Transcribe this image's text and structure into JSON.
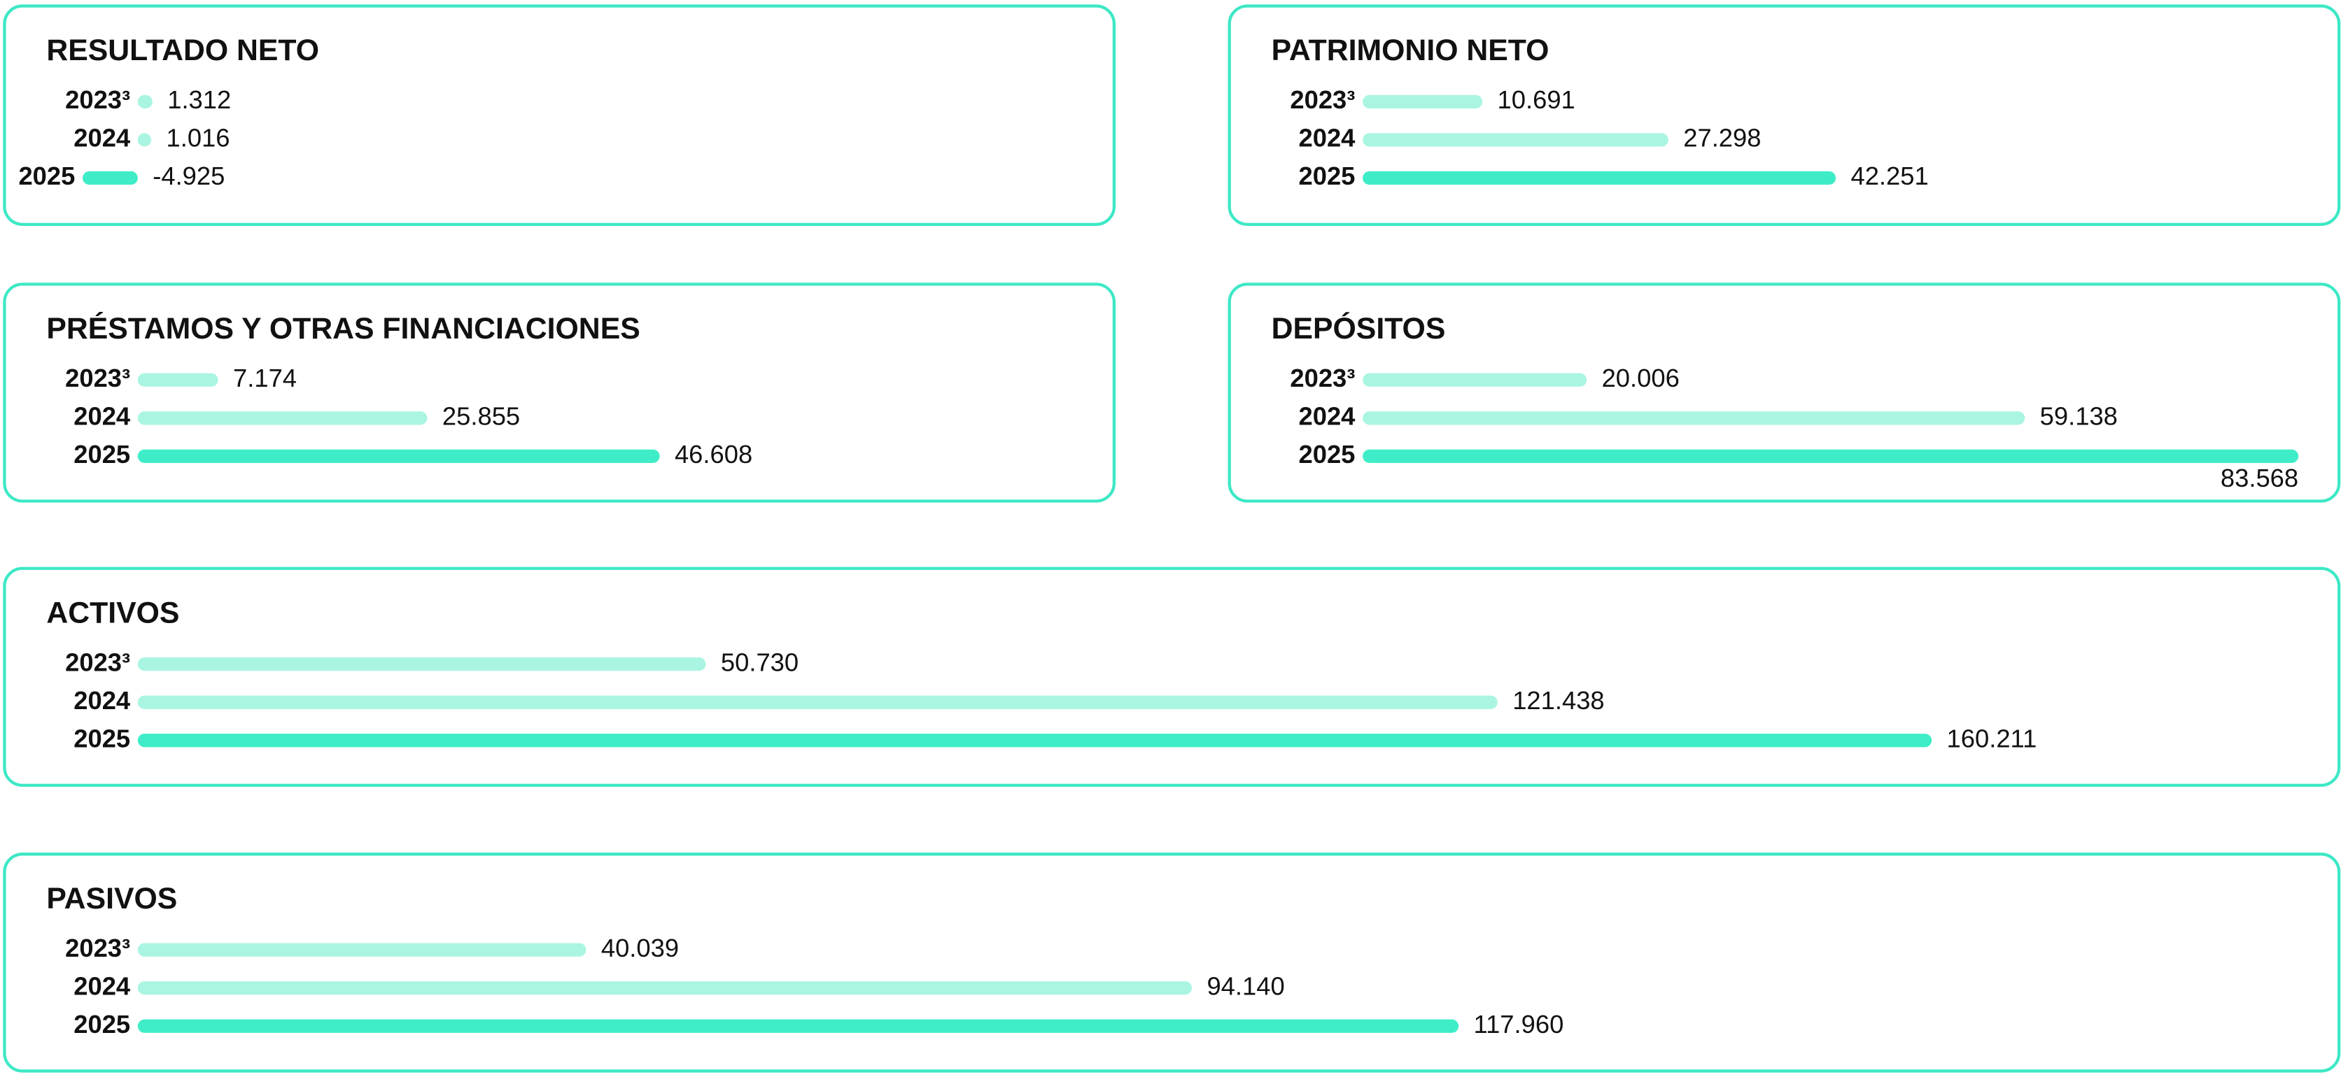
{
  "chart_data": [
    {
      "type": "hbar",
      "title": "RESULTADO NETO",
      "categories": [
        "2023³",
        "2024",
        "2025"
      ],
      "values": [
        1312,
        1016,
        -4925
      ],
      "value_labels": [
        "1.312",
        "1.016",
        "-4.925"
      ],
      "colors": [
        "#aaf5e2",
        "#aaf5e2",
        "#3eedc8"
      ]
    },
    {
      "type": "hbar",
      "title": "PATRIMONIO NETO",
      "categories": [
        "2023³",
        "2024",
        "2025"
      ],
      "values": [
        10691,
        27298,
        42251
      ],
      "value_labels": [
        "10.691",
        "27.298",
        "42.251"
      ],
      "colors": [
        "#aaf5e2",
        "#aaf5e2",
        "#3eedc8"
      ]
    },
    {
      "type": "hbar",
      "title": "PRÉSTAMOS Y OTRAS FINANCIACIONES",
      "categories": [
        "2023³",
        "2024",
        "2025"
      ],
      "values": [
        7174,
        25855,
        46608
      ],
      "value_labels": [
        "7.174",
        "25.855",
        "46.608"
      ],
      "colors": [
        "#aaf5e2",
        "#aaf5e2",
        "#3eedc8"
      ]
    },
    {
      "type": "hbar",
      "title": "DEPÓSITOS",
      "categories": [
        "2023³",
        "2024",
        "2025"
      ],
      "values": [
        20006,
        59138,
        83568
      ],
      "value_labels": [
        "20.006",
        "59.138",
        "83.568"
      ],
      "colors": [
        "#aaf5e2",
        "#aaf5e2",
        "#3eedc8"
      ]
    },
    {
      "type": "hbar",
      "title": "ACTIVOS",
      "categories": [
        "2023³",
        "2024",
        "2025"
      ],
      "values": [
        50730,
        121438,
        160211
      ],
      "value_labels": [
        "50.730",
        "121.438",
        "160.211"
      ],
      "colors": [
        "#aaf5e2",
        "#aaf5e2",
        "#3eedc8"
      ]
    },
    {
      "type": "hbar",
      "title": "PASIVOS",
      "categories": [
        "2023³",
        "2024",
        "2025"
      ],
      "values": [
        40039,
        94140,
        117960
      ],
      "value_labels": [
        "40.039",
        "94.140",
        "117.960"
      ],
      "colors": [
        "#aaf5e2",
        "#aaf5e2",
        "#3eedc8"
      ]
    }
  ]
}
